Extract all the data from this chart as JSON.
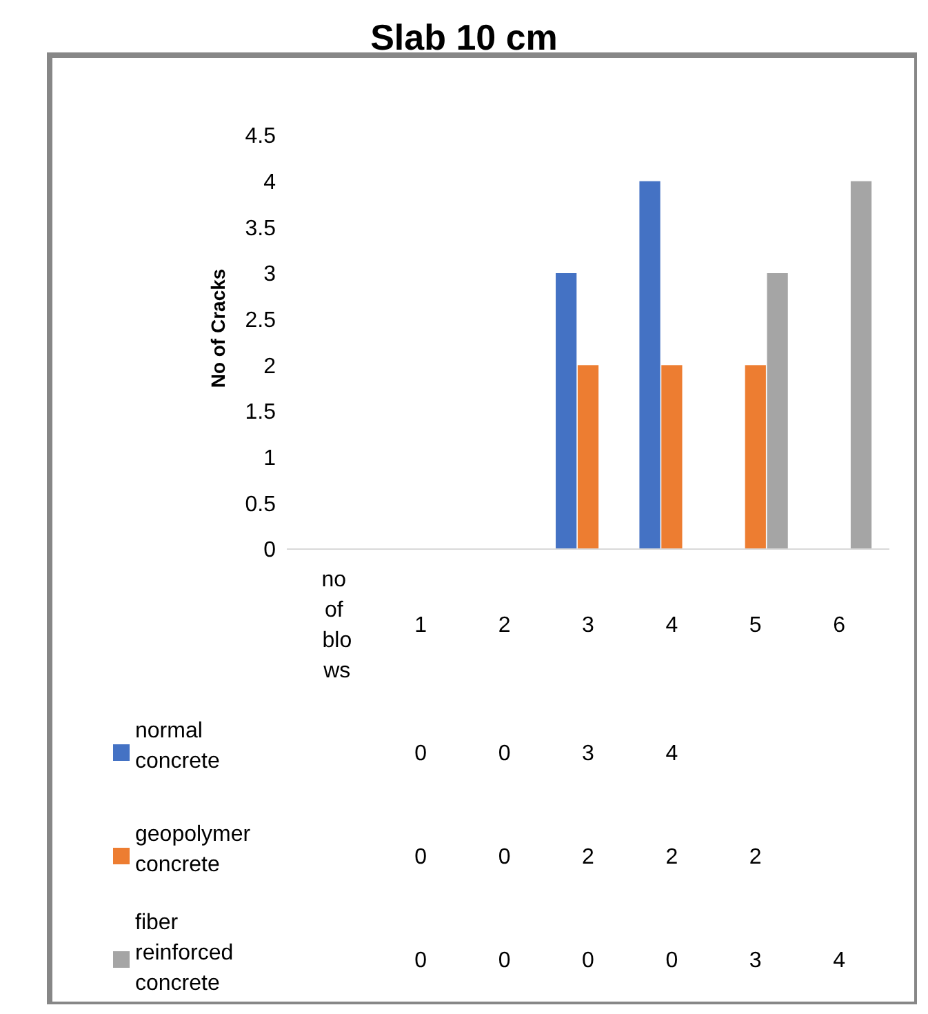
{
  "chart_data": {
    "type": "bar",
    "title": "Slab 10 cm",
    "ylabel": "No of Cracks",
    "categories": [
      "no of blows",
      "1",
      "2",
      "3",
      "4",
      "5",
      "6"
    ],
    "series": [
      {
        "name": "normal concrete",
        "color": "#4472c4",
        "values": [
          null,
          0,
          0,
          3,
          4,
          null,
          null
        ]
      },
      {
        "name": "geopolymer concrete",
        "color": "#ed7d31",
        "values": [
          null,
          0,
          0,
          2,
          2,
          2,
          null
        ]
      },
      {
        "name": "fiber reinforced concrete",
        "color": "#a5a5a5",
        "values": [
          null,
          0,
          0,
          0,
          0,
          3,
          4
        ]
      }
    ],
    "ylim": [
      0,
      4.5
    ],
    "yticks": [
      0,
      0.5,
      1,
      1.5,
      2,
      2.5,
      3,
      3.5,
      4,
      4.5
    ],
    "data_labels": true,
    "grid": false,
    "legend": "bottom left"
  }
}
